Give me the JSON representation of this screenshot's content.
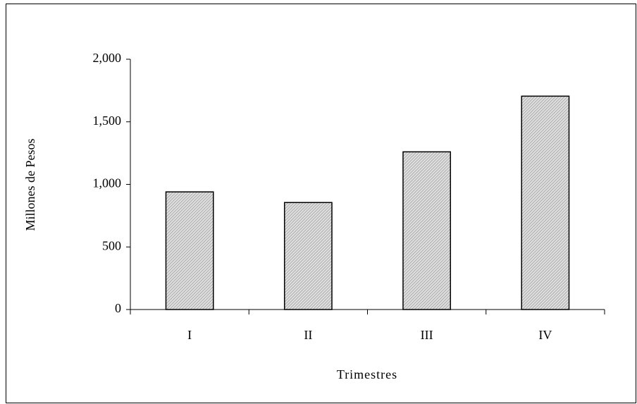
{
  "chart_data": {
    "type": "bar",
    "categories": [
      "I",
      "II",
      "III",
      "IV"
    ],
    "values": [
      940,
      855,
      1260,
      1705
    ],
    "color": "#9a9a9a",
    "xlabel": "Trimestres",
    "ylabel": "Millones de Pesos",
    "ylim": [
      0,
      2000
    ],
    "yticks": [
      0,
      500,
      {
        "value": 1000,
        "label": "1,000"
      },
      {
        "value": 1500,
        "label": "1,500"
      },
      {
        "value": 2000,
        "label": "2,000"
      }
    ]
  }
}
